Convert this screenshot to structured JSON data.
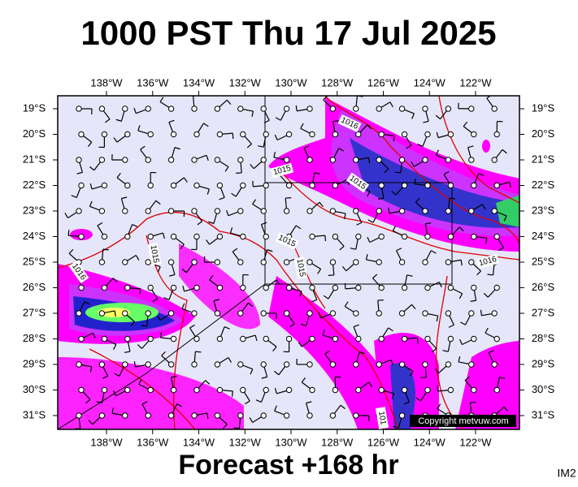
{
  "title": "1000 PST Thu 17 Jul 2025",
  "longitudes": [
    "138°W",
    "136°W",
    "134°W",
    "132°W",
    "130°W",
    "128°W",
    "126°W",
    "124°W",
    "122°W"
  ],
  "latitudes": [
    "19°S",
    "20°S",
    "21°S",
    "22°S",
    "23°S",
    "24°S",
    "25°S",
    "26°S",
    "27°S",
    "28°S",
    "29°S",
    "30°S",
    "31°S"
  ],
  "isobar_labels": [
    "1016",
    "1015",
    "1015",
    "1015",
    "1015",
    "1015",
    "1016",
    "1016",
    "101"
  ],
  "copyright": "Copyright metvuw.com",
  "footer": "Forecast +168 hr",
  "image_id": "IM2"
}
